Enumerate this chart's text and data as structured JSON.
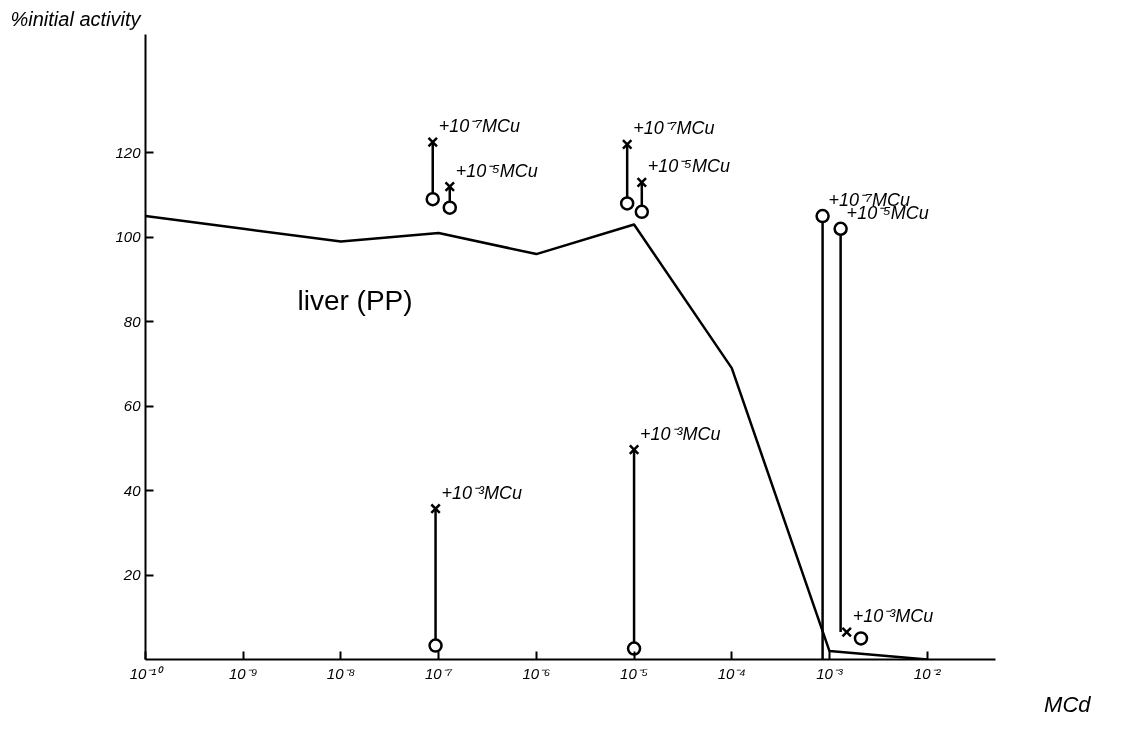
{
  "chart_data": {
    "type": "line",
    "xlabel": "MCd",
    "ylabel": "%initial activity",
    "log": "x",
    "grid": false,
    "xlim": [
      1e-10,
      0.05
    ],
    "ylim": [
      0,
      148
    ],
    "xticks": [
      {
        "value": 1e-10,
        "label": "10⁻¹⁰"
      },
      {
        "value": 1e-09,
        "label": "10⁻⁹"
      },
      {
        "value": 1e-08,
        "label": "10⁻⁸"
      },
      {
        "value": 1e-07,
        "label": "10⁻⁷"
      },
      {
        "value": 1e-06,
        "label": "10⁻⁶"
      },
      {
        "value": 1e-05,
        "label": "10⁻⁵"
      },
      {
        "value": 0.0001,
        "label": "10⁻⁴"
      },
      {
        "value": 0.001,
        "label": "10⁻³"
      },
      {
        "value": 0.01,
        "label": "10⁻²"
      }
    ],
    "yticks": [
      20,
      40,
      60,
      80,
      100,
      120
    ],
    "series": [
      {
        "color": "#000000",
        "marker": "none",
        "x": [
          1e-10,
          1e-09,
          1e-08,
          1e-07,
          1e-06,
          1e-05,
          0.0001,
          0.001,
          0.01
        ],
        "values": [
          105,
          102,
          99,
          101,
          96,
          103,
          69,
          2,
          0
        ]
      },
      {
        "type": "line",
        "color": "#000000",
        "marker": "none",
        "x": [
          8.7e-08,
          8.7e-08,
          null,
          1.3e-07,
          1.3e-07,
          null,
          9.3e-08,
          9.3e-08,
          null,
          8.5e-06,
          8.5e-06,
          null,
          1.2e-05,
          1.2e-05,
          null,
          1e-05,
          1e-05,
          null,
          0.00085,
          0.00085,
          null,
          0.0013,
          0.0013
        ],
        "values": [
          122.5,
          109,
          null,
          112,
          107,
          null,
          35.7,
          3.3,
          null,
          122,
          108,
          null,
          113,
          106,
          null,
          49.7,
          2.6,
          null,
          105,
          0,
          null,
          102,
          6.5
        ]
      },
      {
        "type": "scatter",
        "color": "#000000",
        "marker": "cross",
        "x": [
          8.7e-08,
          1.3e-07,
          9.3e-08,
          8.5e-06,
          1.2e-05,
          1e-05,
          0.0015
        ],
        "values": [
          122.5,
          112,
          35.7,
          122,
          113,
          49.7,
          6.5
        ]
      },
      {
        "type": "scatter",
        "color": "#000000",
        "marker": "circle",
        "x": [
          8.7e-08,
          1.3e-07,
          9.3e-08,
          8.5e-06,
          1.2e-05,
          1e-05,
          0.00085,
          0.0013,
          0.0021
        ],
        "values": [
          109,
          107,
          3.3,
          108,
          106,
          2.6,
          105,
          102,
          5
        ]
      }
    ],
    "annotations": [
      "liver (PP)",
      {
        "text": "+10⁻⁷MCu",
        "x": 8.7e-08,
        "y": 122.5
      },
      {
        "text": "+10⁻⁵MCu",
        "x": 1.3e-07,
        "y": 112
      },
      {
        "text": "+10⁻³MCu",
        "x": 9.3e-08,
        "y": 35.7
      },
      {
        "text": "+10⁻⁷MCu",
        "x": 8.5e-06,
        "y": 122
      },
      {
        "text": "+10⁻⁵MCu",
        "x": 1.2e-05,
        "y": 113
      },
      {
        "text": "+10⁻³MCu",
        "x": 1e-05,
        "y": 49.7
      },
      {
        "text": "+10⁻⁷MCu",
        "x": 0.00085,
        "y": 105
      },
      {
        "text": "+10⁻⁵MCu",
        "x": 0.0013,
        "y": 102
      },
      {
        "text": "+10⁻³MCu",
        "x": 0.0015,
        "y": 6.5
      }
    ]
  }
}
